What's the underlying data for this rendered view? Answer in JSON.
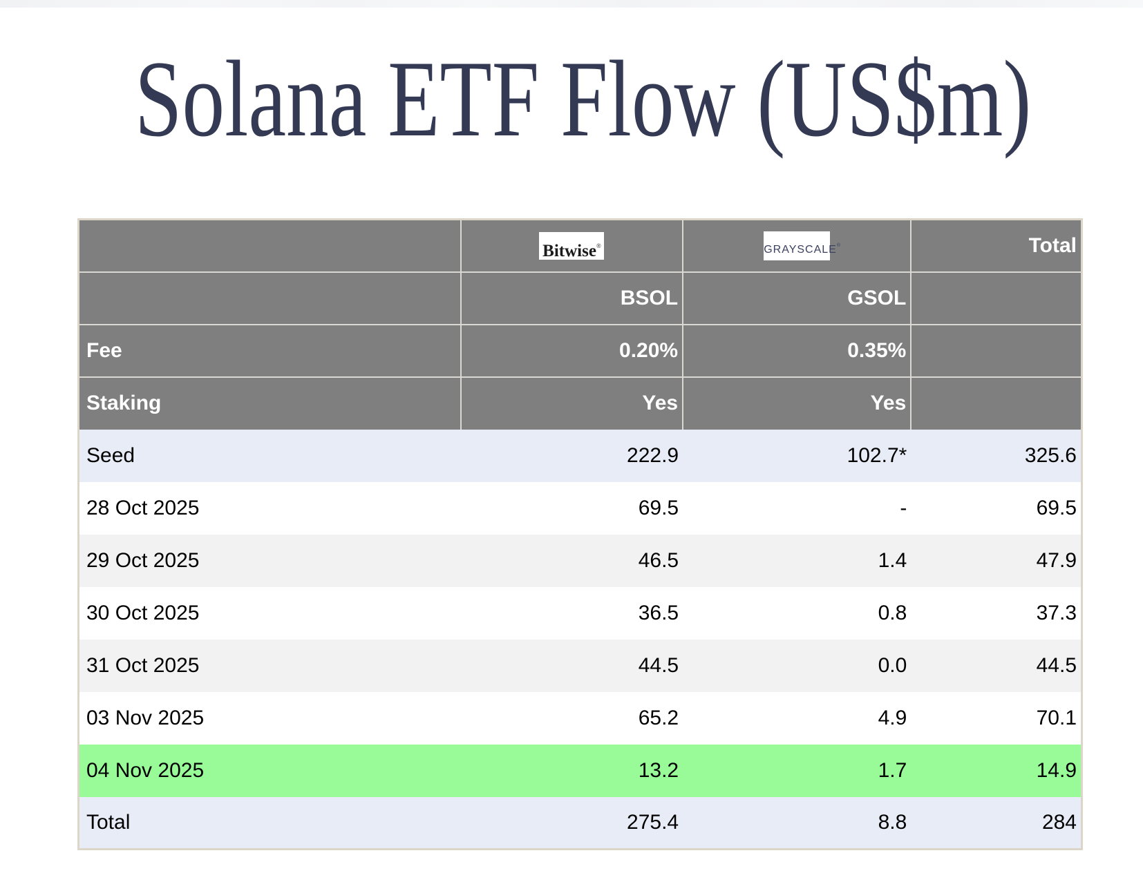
{
  "title": "Solana ETF Flow (US$m)",
  "table": {
    "logos": {
      "bitwise": "Bitwise",
      "bitwise_reg": "®",
      "grayscale": "GRAYSCALE",
      "grayscale_reg": "®"
    },
    "header": {
      "total_label": "Total",
      "tickers": {
        "bsol": "BSOL",
        "gsol": "GSOL"
      },
      "fee": {
        "label": "Fee",
        "bsol": "0.20%",
        "gsol": "0.35%"
      },
      "staking": {
        "label": "Staking",
        "bsol": "Yes",
        "gsol": "Yes"
      }
    },
    "rows": [
      {
        "label": "Seed",
        "bsol": "222.9",
        "gsol": "102.7*",
        "total": "325.6",
        "bg": "lavender"
      },
      {
        "label": "28 Oct 2025",
        "bsol": "69.5",
        "gsol": "-",
        "total": "69.5",
        "bg": "white"
      },
      {
        "label": "29 Oct 2025",
        "bsol": "46.5",
        "gsol": "1.4",
        "total": "47.9",
        "bg": "gray"
      },
      {
        "label": "30 Oct 2025",
        "bsol": "36.5",
        "gsol": "0.8",
        "total": "37.3",
        "bg": "white"
      },
      {
        "label": "31 Oct 2025",
        "bsol": "44.5",
        "gsol": "0.0",
        "total": "44.5",
        "bg": "gray"
      },
      {
        "label": "03 Nov 2025",
        "bsol": "65.2",
        "gsol": "4.9",
        "total": "70.1",
        "bg": "white"
      },
      {
        "label": "04 Nov 2025",
        "bsol": "13.2",
        "gsol": "1.7",
        "total": "14.9",
        "bg": "green"
      },
      {
        "label": "Total",
        "bsol": "275.4",
        "gsol": "8.8",
        "total": "284",
        "bg": "lavender"
      }
    ]
  },
  "colors": {
    "header_gray": "#7f7f7f",
    "row_lavender": "#e8ecf7",
    "row_alt_gray": "#f2f2f2",
    "row_highlight_green": "#98fb98",
    "table_border_beige": "#dcd6c8",
    "title_navy": "#343a54"
  },
  "chart_data": {
    "type": "table",
    "title": "Solana ETF Flow (US$m)",
    "columns": [
      "",
      "Bitwise BSOL",
      "Grayscale GSOL",
      "Total"
    ],
    "fund_meta": {
      "fee": {
        "BSOL": "0.20%",
        "GSOL": "0.35%"
      },
      "staking": {
        "BSOL": "Yes",
        "GSOL": "Yes"
      }
    },
    "rows": [
      [
        "Seed",
        222.9,
        "102.7*",
        325.6
      ],
      [
        "28 Oct 2025",
        69.5,
        null,
        69.5
      ],
      [
        "29 Oct 2025",
        46.5,
        1.4,
        47.9
      ],
      [
        "30 Oct 2025",
        36.5,
        0.8,
        37.3
      ],
      [
        "31 Oct 2025",
        44.5,
        0.0,
        44.5
      ],
      [
        "03 Nov 2025",
        65.2,
        4.9,
        70.1
      ],
      [
        "04 Nov 2025",
        13.2,
        1.7,
        14.9
      ],
      [
        "Total",
        275.4,
        8.8,
        284
      ]
    ],
    "highlighted_row": "04 Nov 2025"
  }
}
